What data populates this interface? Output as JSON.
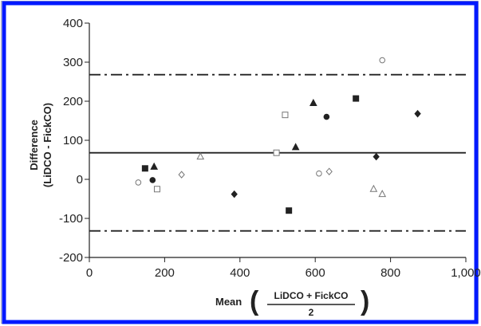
{
  "chart_data": {
    "type": "scatter",
    "title": "",
    "xlabel": "Mean",
    "xlabel_fraction": {
      "numerator": "LiDCO + FickCO",
      "denominator": "2"
    },
    "ylabel_line1": "Difference",
    "ylabel_line2": "(LiDCO - FickCO)",
    "xlim": [
      0,
      1000
    ],
    "ylim": [
      -200,
      400
    ],
    "xticks": [
      0,
      200,
      400,
      600,
      800,
      1000
    ],
    "xtick_labels": [
      "0",
      "200",
      "400",
      "600",
      "800",
      "1,000"
    ],
    "yticks": [
      -200,
      -100,
      0,
      100,
      200,
      300,
      400
    ],
    "ytick_labels": [
      "-200",
      "-100",
      "0",
      "100",
      "200",
      "300",
      "400"
    ],
    "grid": false,
    "legend": "none",
    "reference_lines": [
      {
        "y": 68,
        "style": "solid"
      },
      {
        "y": 268,
        "style": "dash-dot"
      },
      {
        "y": -132,
        "style": "dash-dot"
      }
    ],
    "points": [
      {
        "x": 148,
        "y": 28,
        "marker": "filled-square"
      },
      {
        "x": 172,
        "y": 32,
        "marker": "filled-triangle"
      },
      {
        "x": 168,
        "y": -2,
        "marker": "filled-circle"
      },
      {
        "x": 180,
        "y": -25,
        "marker": "open-square"
      },
      {
        "x": 130,
        "y": -8,
        "marker": "open-circle"
      },
      {
        "x": 245,
        "y": 12,
        "marker": "open-diamond"
      },
      {
        "x": 295,
        "y": 58,
        "marker": "open-triangle"
      },
      {
        "x": 385,
        "y": -38,
        "marker": "filled-diamond"
      },
      {
        "x": 497,
        "y": 68,
        "marker": "open-square"
      },
      {
        "x": 520,
        "y": 165,
        "marker": "open-square"
      },
      {
        "x": 530,
        "y": -80,
        "marker": "filled-square"
      },
      {
        "x": 548,
        "y": 82,
        "marker": "filled-triangle"
      },
      {
        "x": 595,
        "y": 195,
        "marker": "filled-triangle"
      },
      {
        "x": 610,
        "y": 15,
        "marker": "open-circle"
      },
      {
        "x": 630,
        "y": 160,
        "marker": "filled-circle"
      },
      {
        "x": 637,
        "y": 20,
        "marker": "open-diamond"
      },
      {
        "x": 708,
        "y": 207,
        "marker": "filled-square"
      },
      {
        "x": 755,
        "y": -25,
        "marker": "open-triangle"
      },
      {
        "x": 762,
        "y": 58,
        "marker": "filled-diamond"
      },
      {
        "x": 778,
        "y": 305,
        "marker": "open-circle"
      },
      {
        "x": 778,
        "y": -38,
        "marker": "open-triangle"
      },
      {
        "x": 872,
        "y": 168,
        "marker": "filled-diamond"
      }
    ]
  },
  "colors": {
    "frame_blue": "#0019ff",
    "outer_border": "#b5b5b5",
    "ink": "#222222",
    "background": "#ffffff"
  }
}
